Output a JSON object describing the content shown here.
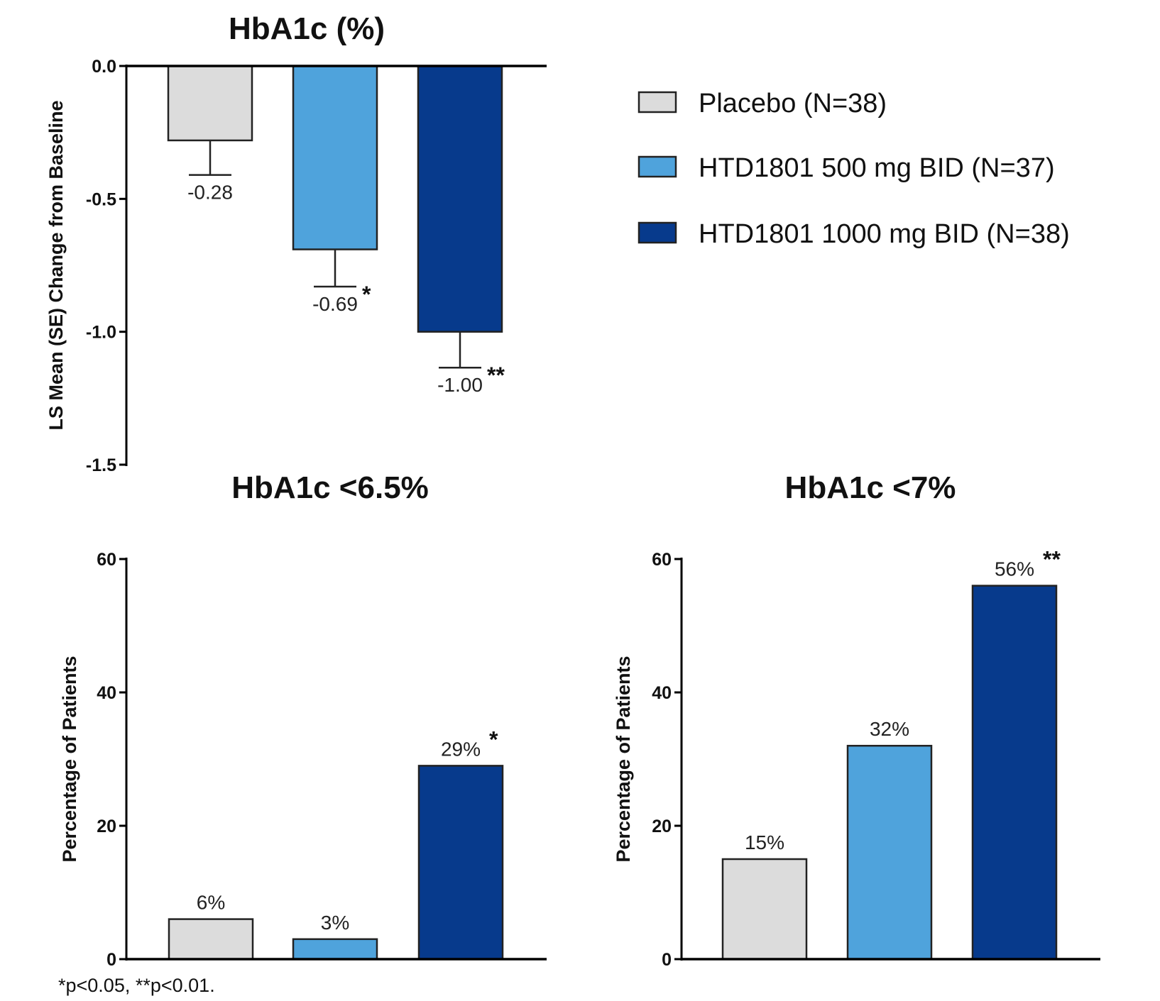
{
  "legend": {
    "items": [
      {
        "label": "Placebo (N=38)",
        "color": "#dcdcdc"
      },
      {
        "label": "HTD1801 500 mg BID (N=37)",
        "color": "#4fa3dc"
      },
      {
        "label": "HTD1801 1000 mg BID (N=38)",
        "color": "#073a8c"
      }
    ],
    "placement": "top-right"
  },
  "footnote": "*p<0.05, **p<0.01.",
  "chart_data": [
    {
      "type": "bar",
      "title": "HbA1c (%)",
      "ylabel": "LS Mean (SE) Change from Baseline",
      "xlabel": "",
      "ylim": [
        -1.5,
        0.0
      ],
      "yticks": [
        0.0,
        -0.5,
        -1.0,
        -1.5
      ],
      "ytick_labels": [
        "0.0",
        "-0.5",
        "-1.0",
        "-1.5"
      ],
      "categories": [
        "Placebo (N=38)",
        "HTD1801 500 mg BID (N=37)",
        "HTD1801 1000 mg BID (N=38)"
      ],
      "values": [
        -0.28,
        -0.69,
        -1.0
      ],
      "errors": [
        0.13,
        0.14,
        0.135
      ],
      "data_labels": [
        "-0.28",
        "-0.69",
        "-1.00"
      ],
      "significance": [
        "",
        "*",
        "**"
      ],
      "colors": [
        "#dcdcdc",
        "#4fa3dc",
        "#073a8c"
      ],
      "grid": false
    },
    {
      "type": "bar",
      "title": "HbA1c <6.5%",
      "ylabel": "Percentage of Patients",
      "xlabel": "",
      "ylim": [
        0,
        60
      ],
      "yticks": [
        0,
        20,
        40,
        60
      ],
      "ytick_labels": [
        "0",
        "20",
        "40",
        "60"
      ],
      "categories": [
        "Placebo (N=38)",
        "HTD1801 500 mg BID (N=37)",
        "HTD1801 1000 mg BID (N=38)"
      ],
      "values": [
        6,
        3,
        29
      ],
      "data_labels": [
        "6%",
        "3%",
        "29%"
      ],
      "significance": [
        "",
        "",
        "*"
      ],
      "colors": [
        "#dcdcdc",
        "#4fa3dc",
        "#073a8c"
      ],
      "grid": false
    },
    {
      "type": "bar",
      "title": "HbA1c <7%",
      "ylabel": "Percentage of Patients",
      "xlabel": "",
      "ylim": [
        0,
        60
      ],
      "yticks": [
        0,
        20,
        40,
        60
      ],
      "ytick_labels": [
        "0",
        "20",
        "40",
        "60"
      ],
      "categories": [
        "Placebo (N=38)",
        "HTD1801 500 mg BID (N=37)",
        "HTD1801 1000 mg BID (N=38)"
      ],
      "values": [
        15,
        32,
        56
      ],
      "data_labels": [
        "15%",
        "32%",
        "56%"
      ],
      "significance": [
        "",
        "",
        "**"
      ],
      "colors": [
        "#dcdcdc",
        "#4fa3dc",
        "#073a8c"
      ],
      "grid": false
    }
  ]
}
